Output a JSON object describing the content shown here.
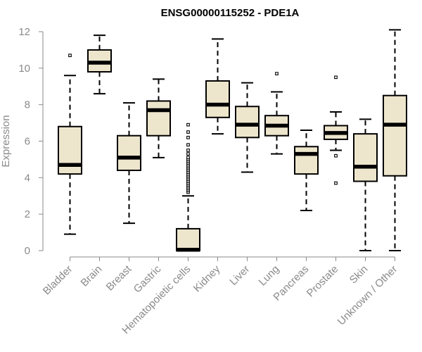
{
  "chart_data": {
    "type": "boxplot",
    "title": "ENSG00000115252 - PDE1A",
    "xlabel": "",
    "ylabel": "Expression",
    "ylim": [
      0,
      12
    ],
    "yticks": [
      0,
      2,
      4,
      6,
      8,
      10,
      12
    ],
    "grid": false,
    "box_fill": "#ede6cd",
    "box_stroke": "#000000",
    "axis_color": "#8a8a8a",
    "categories": [
      "Bladder",
      "Brain",
      "Breast",
      "Gastric",
      "Hematopoietic cells",
      "Kidney",
      "Liver",
      "Lung",
      "Pancreas",
      "Prostate",
      "Skin",
      "Unknown / Other"
    ],
    "boxes": [
      {
        "name": "Bladder",
        "whisker_low": 0.9,
        "q1": 4.2,
        "median": 4.7,
        "q3": 6.8,
        "whisker_high": 9.6,
        "outliers": [
          10.7
        ]
      },
      {
        "name": "Brain",
        "whisker_low": 8.6,
        "q1": 9.8,
        "median": 10.3,
        "q3": 11.0,
        "whisker_high": 11.8,
        "outliers": []
      },
      {
        "name": "Breast",
        "whisker_low": 1.5,
        "q1": 4.4,
        "median": 5.1,
        "q3": 6.3,
        "whisker_high": 8.1,
        "outliers": []
      },
      {
        "name": "Gastric",
        "whisker_low": 5.1,
        "q1": 6.3,
        "median": 7.7,
        "q3": 8.2,
        "whisker_high": 9.4,
        "outliers": []
      },
      {
        "name": "Hematopoietic cells",
        "whisker_low": 0.0,
        "q1": 0.0,
        "median": 0.05,
        "q3": 1.2,
        "whisker_high": 3.0,
        "outliers": [
          3.2,
          3.3,
          3.4,
          3.5,
          3.6,
          3.7,
          3.8,
          3.9,
          4.0,
          4.1,
          4.2,
          4.3,
          4.4,
          4.5,
          4.6,
          4.7,
          4.8,
          4.9,
          5.0,
          5.1,
          5.3,
          5.5,
          5.8,
          6.2,
          6.5,
          6.9
        ]
      },
      {
        "name": "Kidney",
        "whisker_low": 6.4,
        "q1": 7.3,
        "median": 8.0,
        "q3": 9.3,
        "whisker_high": 11.6,
        "outliers": []
      },
      {
        "name": "Liver",
        "whisker_low": 4.3,
        "q1": 6.2,
        "median": 6.9,
        "q3": 7.9,
        "whisker_high": 9.2,
        "outliers": []
      },
      {
        "name": "Lung",
        "whisker_low": 5.3,
        "q1": 6.3,
        "median": 6.85,
        "q3": 7.4,
        "whisker_high": 8.7,
        "outliers": [
          9.7
        ]
      },
      {
        "name": "Pancreas",
        "whisker_low": 2.2,
        "q1": 4.2,
        "median": 5.3,
        "q3": 5.7,
        "whisker_high": 6.6,
        "outliers": []
      },
      {
        "name": "Prostate",
        "whisker_low": 5.5,
        "q1": 6.1,
        "median": 6.45,
        "q3": 6.85,
        "whisker_high": 7.6,
        "outliers": [
          9.5,
          5.2,
          3.7
        ]
      },
      {
        "name": "Skin",
        "whisker_low": 0.0,
        "q1": 3.8,
        "median": 4.6,
        "q3": 6.4,
        "whisker_high": 7.2,
        "outliers": []
      },
      {
        "name": "Unknown / Other",
        "whisker_low": 0.0,
        "q1": 4.1,
        "median": 6.9,
        "q3": 8.5,
        "whisker_high": 12.1,
        "outliers": []
      }
    ]
  }
}
